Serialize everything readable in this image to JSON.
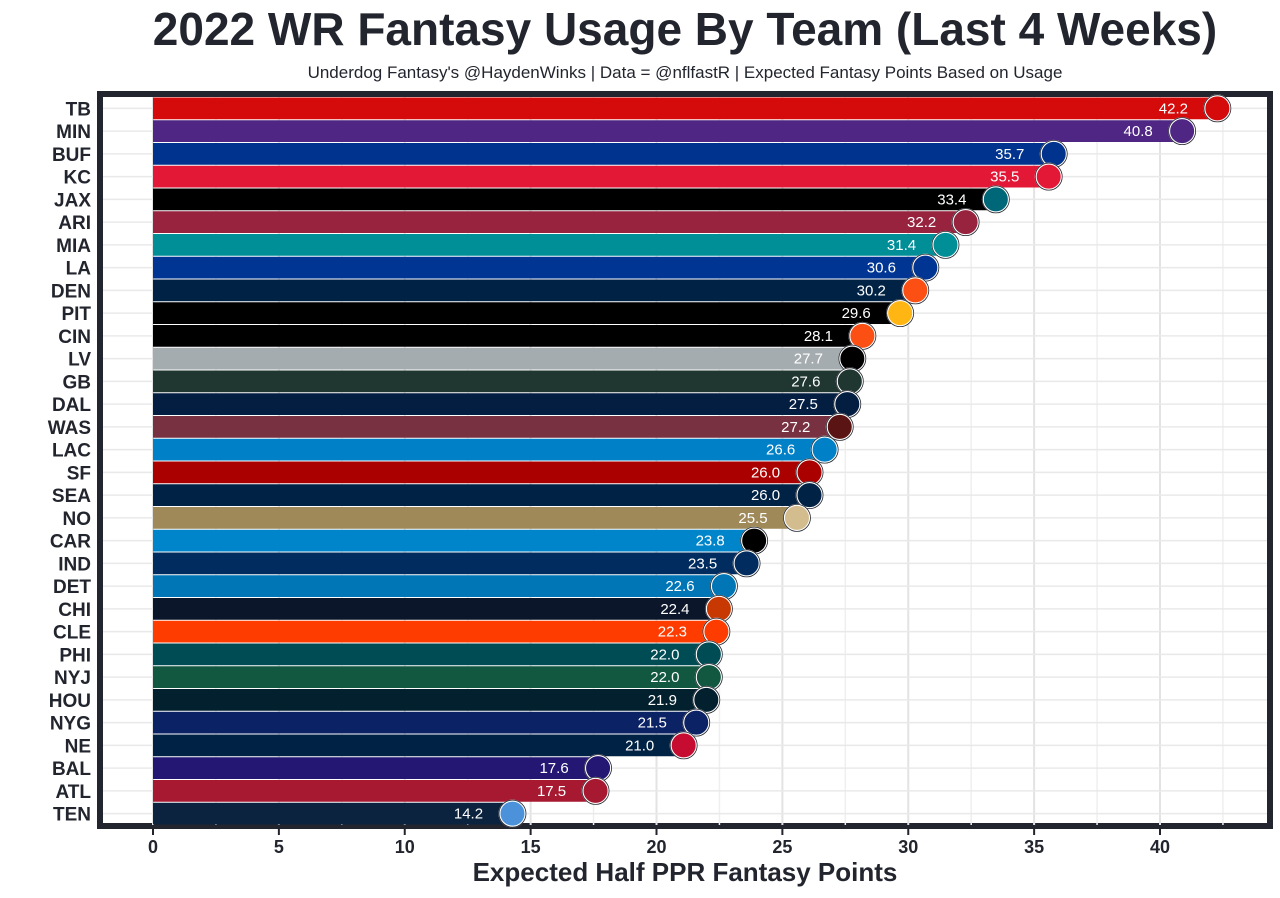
{
  "title": "2022 WR Fantasy Usage By Team (Last 4 Weeks)",
  "subtitle": "Underdog Fantasy's @HaydenWinks | Data = @nflfastR | Expected Fantasy Points Based on Usage",
  "chart_data": {
    "type": "bar",
    "orientation": "horizontal",
    "xlabel": "Expected Half PPR Fantasy Points",
    "ylabel": "",
    "xlim": [
      0,
      44
    ],
    "xticks": [
      0,
      5,
      10,
      15,
      20,
      25,
      30,
      35,
      40
    ],
    "grid": true,
    "categories": [
      "TB",
      "MIN",
      "BUF",
      "KC",
      "JAX",
      "ARI",
      "MIA",
      "LA",
      "DEN",
      "PIT",
      "CIN",
      "LV",
      "GB",
      "DAL",
      "WAS",
      "LAC",
      "SF",
      "SEA",
      "NO",
      "CAR",
      "IND",
      "DET",
      "CHI",
      "CLE",
      "PHI",
      "NYJ",
      "HOU",
      "NYG",
      "NE",
      "BAL",
      "ATL",
      "TEN"
    ],
    "values": [
      42.2,
      40.8,
      35.7,
      35.5,
      33.4,
      32.2,
      31.4,
      30.6,
      30.2,
      29.6,
      28.1,
      27.7,
      27.6,
      27.5,
      27.2,
      26.6,
      26.0,
      26.0,
      25.5,
      23.8,
      23.5,
      22.6,
      22.4,
      22.3,
      22.0,
      22.0,
      21.9,
      21.5,
      21.0,
      17.6,
      17.5,
      14.2
    ],
    "labels": [
      "42.2",
      "40.8",
      "35.7",
      "35.5",
      "33.4",
      "32.2",
      "31.4",
      "30.6",
      "30.2",
      "29.6",
      "28.1",
      "27.7",
      "27.6",
      "27.5",
      "27.2",
      "26.6",
      "26.0",
      "26.0",
      "25.5",
      "23.8",
      "23.5",
      "22.6",
      "22.4",
      "22.3",
      "22.0",
      "22.0",
      "21.9",
      "21.5",
      "21.0",
      "17.6",
      "17.5",
      "14.2"
    ],
    "colors": [
      "#d50a0a",
      "#4f2683",
      "#00338d",
      "#e31837",
      "#000000",
      "#97233f",
      "#008e97",
      "#003594",
      "#002244",
      "#000000",
      "#000000",
      "#a5acaf",
      "#203731",
      "#041e42",
      "#773141",
      "#0080c6",
      "#aa0000",
      "#002244",
      "#9f8958",
      "#0085ca",
      "#002c5f",
      "#0076b6",
      "#0b162a",
      "#ff3c00",
      "#004c54",
      "#125740",
      "#03202f",
      "#0b2265",
      "#002244",
      "#241773",
      "#a71930",
      "#0c2340"
    ],
    "logo_colors": [
      "#d50a0a",
      "#4f2683",
      "#00338d",
      "#e31837",
      "#006778",
      "#97233f",
      "#008e97",
      "#003594",
      "#fb4f14",
      "#ffb612",
      "#fb4f14",
      "#000000",
      "#203731",
      "#041e42",
      "#5a1414",
      "#0080c6",
      "#aa0000",
      "#002244",
      "#d3bc8d",
      "#000000",
      "#002c5f",
      "#0076b6",
      "#c83803",
      "#ff3c00",
      "#004c54",
      "#125740",
      "#03202f",
      "#0b2265",
      "#c60c30",
      "#241773",
      "#a71930",
      "#4b92db"
    ]
  }
}
